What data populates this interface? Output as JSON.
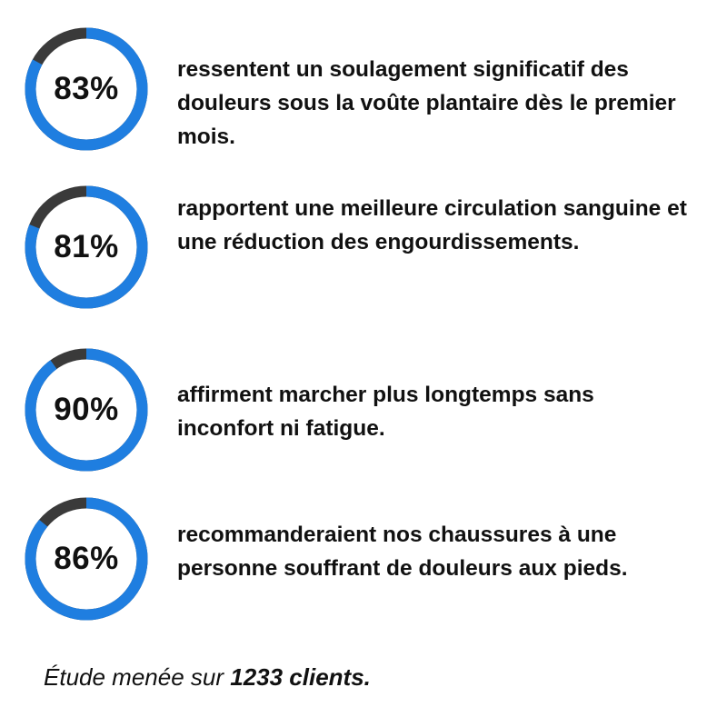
{
  "chart_data": {
    "type": "donut",
    "series": [
      {
        "value": 83,
        "label": "83%",
        "description": "ressentent un soulagement significatif des douleurs sous la voûte plantaire dès le premier mois."
      },
      {
        "value": 81,
        "label": "81%",
        "description": "rapportent une meilleure circulation sanguine et une réduction des engourdissements."
      },
      {
        "value": 90,
        "label": "90%",
        "description": "affirment marcher plus longtemps sans inconfort ni fatigue."
      },
      {
        "value": 86,
        "label": "86%",
        "description": "recommanderaient nos chaussures à une personne souffrant de douleurs aux pieds."
      }
    ],
    "colors": {
      "filled": "#1f7ee0",
      "remainder": "#3a3a3a"
    }
  },
  "footnote": {
    "prefix": "Étude menée sur ",
    "emphasis": "1233 clients."
  }
}
